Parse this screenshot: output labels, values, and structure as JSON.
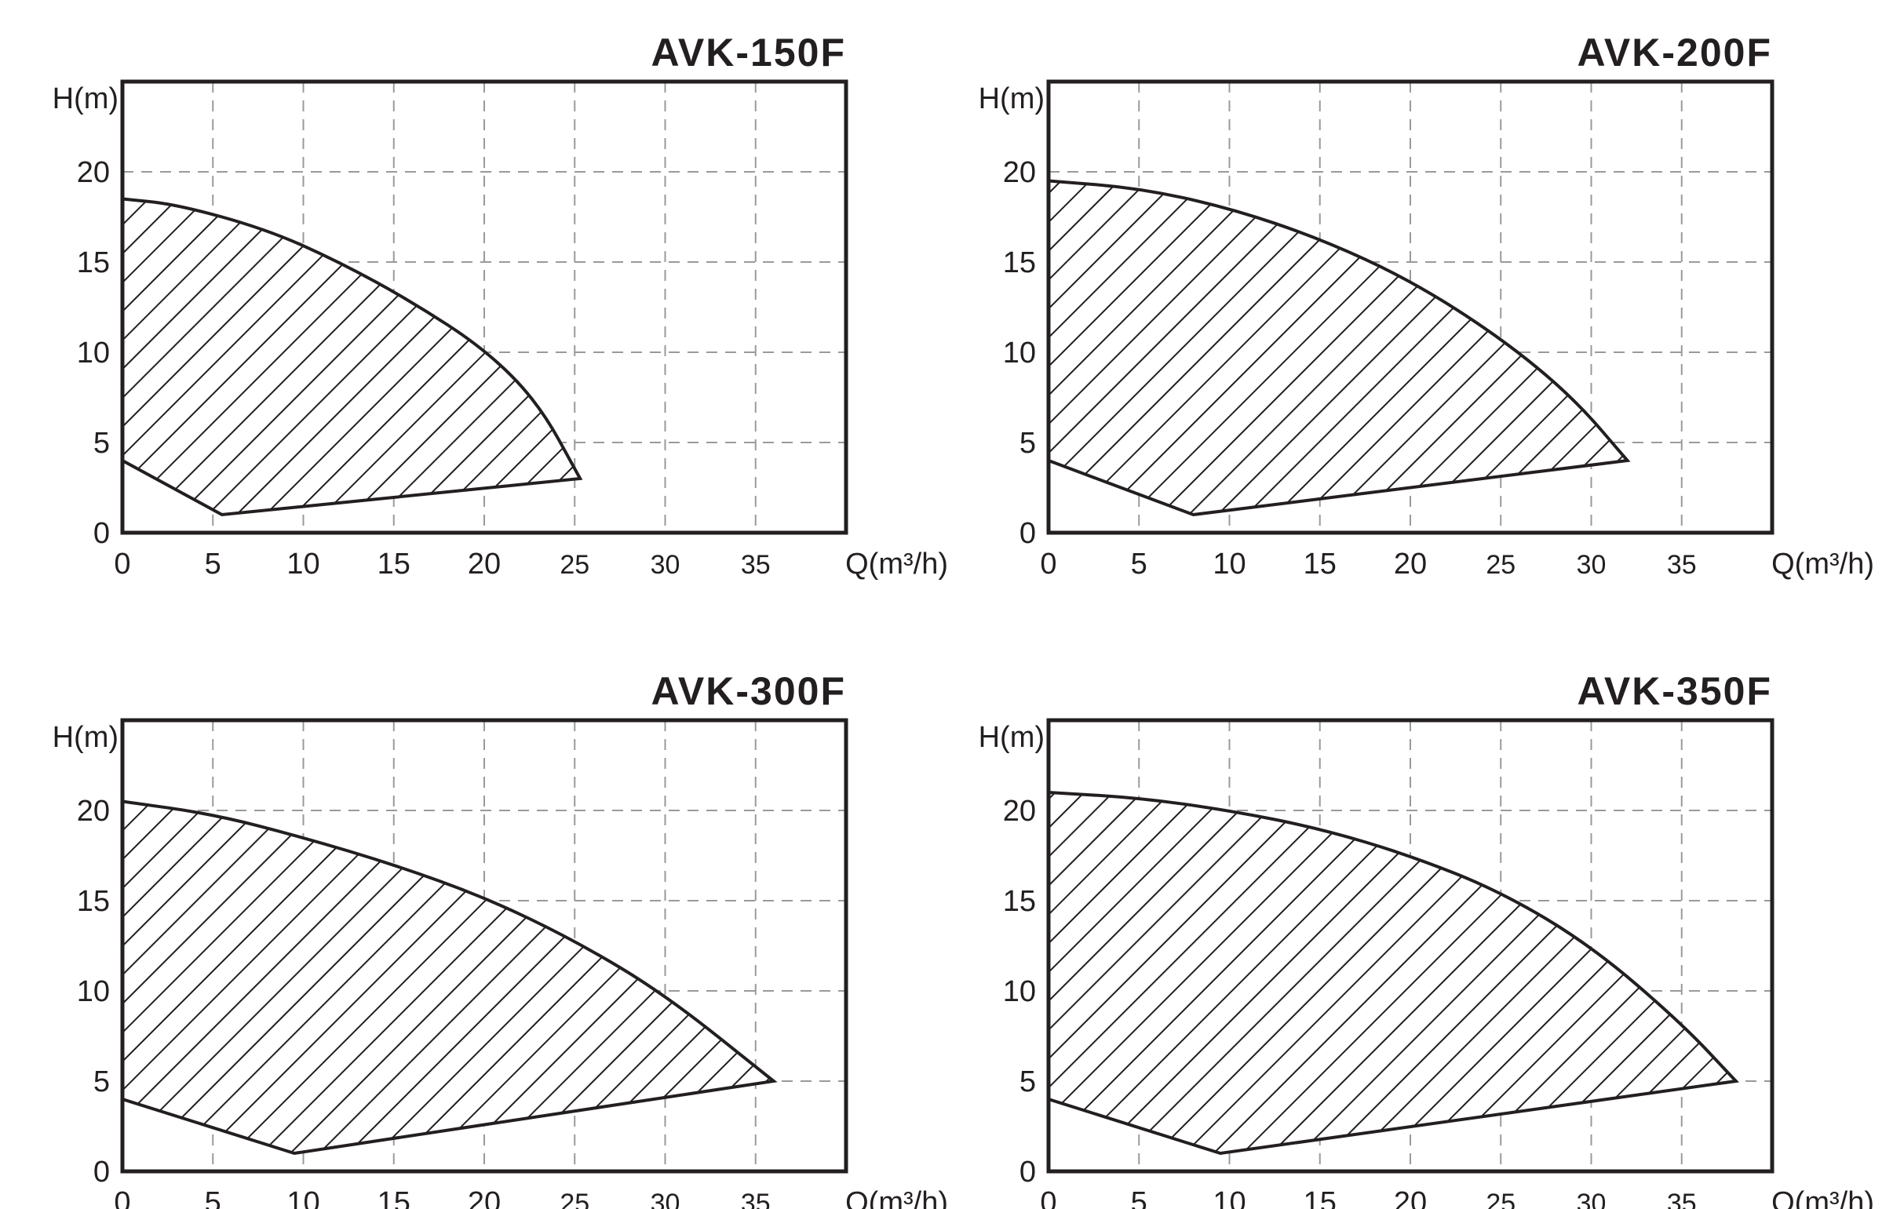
{
  "chart_data": [
    {
      "type": "area",
      "title": "AVK-150F",
      "xlabel": "Q(m³/h)",
      "ylabel": "H(m)",
      "xlim": [
        0,
        40
      ],
      "ylim": [
        0,
        25
      ],
      "x_ticks": [
        "0",
        "5",
        "10",
        "15",
        "20",
        "25",
        "30",
        "35"
      ],
      "y_ticks": [
        "0",
        "5",
        "10",
        "15",
        "20"
      ],
      "grid": true,
      "fill": "diagonal-hatch",
      "operating_region": {
        "upper_curve": [
          [
            0,
            18.5
          ],
          [
            3,
            18.2
          ],
          [
            8,
            16.8
          ],
          [
            12,
            15.0
          ],
          [
            16,
            12.8
          ],
          [
            20,
            10.2
          ],
          [
            23,
            7.2
          ],
          [
            25.3,
            3.0
          ]
        ],
        "lower_curve": [
          [
            0,
            4
          ],
          [
            5.5,
            1
          ],
          [
            25.3,
            3.0
          ]
        ]
      }
    },
    {
      "type": "area",
      "title": "AVK-200F",
      "xlabel": "Q(m³/h)",
      "ylabel": "H(m)",
      "xlim": [
        0,
        40
      ],
      "ylim": [
        0,
        25
      ],
      "x_ticks": [
        "0",
        "5",
        "10",
        "15",
        "20",
        "25",
        "30",
        "35"
      ],
      "y_ticks": [
        "0",
        "5",
        "10",
        "15",
        "20"
      ],
      "grid": true,
      "fill": "diagonal-hatch",
      "operating_region": {
        "upper_curve": [
          [
            0,
            19.5
          ],
          [
            5,
            19.1
          ],
          [
            10,
            18.0
          ],
          [
            15,
            16.3
          ],
          [
            20,
            14.0
          ],
          [
            25,
            10.8
          ],
          [
            29,
            7.5
          ],
          [
            32,
            4.0
          ]
        ],
        "lower_curve": [
          [
            0,
            4
          ],
          [
            8,
            1
          ],
          [
            32,
            4.0
          ]
        ]
      }
    },
    {
      "type": "area",
      "title": "AVK-300F",
      "xlabel": "Q(m³/h)",
      "ylabel": "H(m)",
      "xlim": [
        0,
        40
      ],
      "ylim": [
        0,
        25
      ],
      "x_ticks": [
        "0",
        "5",
        "10",
        "15",
        "20",
        "25",
        "30",
        "35"
      ],
      "y_ticks": [
        "0",
        "5",
        "10",
        "15",
        "20"
      ],
      "grid": true,
      "fill": "diagonal-hatch",
      "operating_region": {
        "upper_curve": [
          [
            0,
            20.5
          ],
          [
            5,
            19.8
          ],
          [
            10,
            18.5
          ],
          [
            15,
            17.0
          ],
          [
            20,
            15.2
          ],
          [
            25,
            12.8
          ],
          [
            30,
            9.8
          ],
          [
            36,
            5.0
          ]
        ],
        "lower_curve": [
          [
            0,
            4
          ],
          [
            9.5,
            1
          ],
          [
            36,
            5.0
          ]
        ]
      }
    },
    {
      "type": "area",
      "title": "AVK-350F",
      "xlabel": "Q(m³/h)",
      "ylabel": "H(m)",
      "xlim": [
        0,
        40
      ],
      "ylim": [
        0,
        25
      ],
      "x_ticks": [
        "0",
        "5",
        "10",
        "15",
        "20",
        "25",
        "30",
        "35"
      ],
      "y_ticks": [
        "0",
        "5",
        "10",
        "15",
        "20"
      ],
      "grid": true,
      "fill": "diagonal-hatch",
      "operating_region": {
        "upper_curve": [
          [
            0,
            21.0
          ],
          [
            5,
            20.7
          ],
          [
            10,
            20.0
          ],
          [
            15,
            19.0
          ],
          [
            20,
            17.5
          ],
          [
            25,
            15.5
          ],
          [
            30,
            12.5
          ],
          [
            35,
            8.2
          ],
          [
            38,
            5.0
          ]
        ],
        "lower_curve": [
          [
            0,
            4
          ],
          [
            9.5,
            1
          ],
          [
            38,
            5.0
          ]
        ]
      }
    }
  ]
}
